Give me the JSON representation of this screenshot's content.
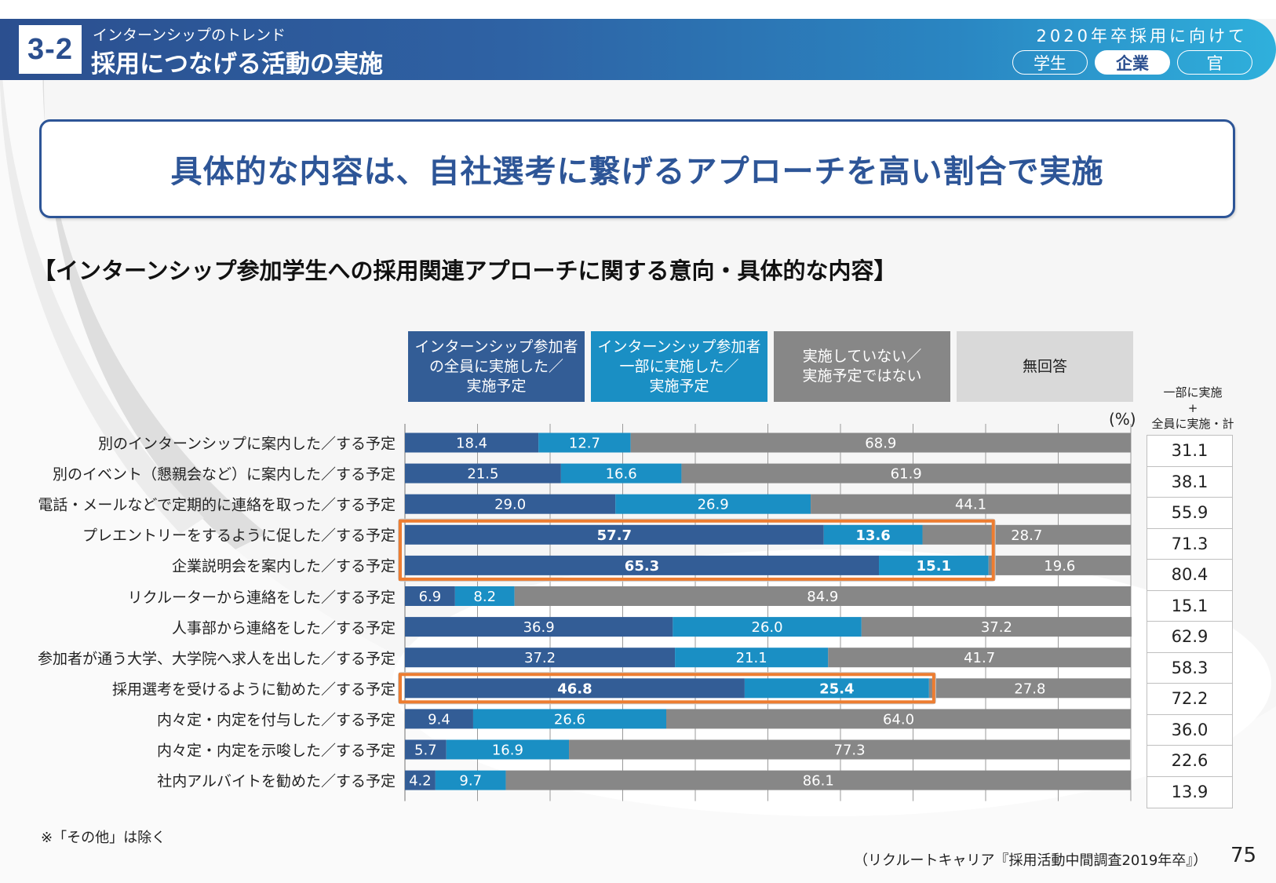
{
  "header": {
    "section_number": "3-2",
    "section_subtitle": "インターンシップのトレンド",
    "section_title": "採用につなげる活動の実施",
    "right_caption": "2020年卒採用に向けて",
    "audience_tabs": [
      {
        "label": "学生",
        "active": false
      },
      {
        "label": "企業",
        "active": true
      },
      {
        "label": "官",
        "active": false
      }
    ]
  },
  "headline": "具体的な内容は、自社選考に繋げるアプローチを高い割合で実施",
  "chart_data": {
    "type": "bar",
    "orientation": "horizontal",
    "stacked": true,
    "title": "【インターンシップ参加学生への採用関連アプローチに関する意向・具体的な内容】",
    "unit_label": "(%)",
    "xlim": [
      0,
      100
    ],
    "grid": true,
    "legend_position": "top",
    "categories": [
      "別のインターンシップに案内した／する予定",
      "別のイベント（懇親会など）に案内した／する予定",
      "電話・メールなどで定期的に連絡を取った／する予定",
      "プレエントリーをするように促した／する予定",
      "企業説明会を案内した／する予定",
      "リクルーターから連絡をした／する予定",
      "人事部から連絡をした／する予定",
      "参加者が通う大学、大学院へ求人を出した／する予定",
      "採用選考を受けるように勧めた／する予定",
      "内々定・内定を付与した／する予定",
      "内々定・内定を示唆した／する予定",
      "社内アルバイトを勧めた／する予定"
    ],
    "series": [
      {
        "name": "インターンシップ参加者\nの全員に実施した／\n実施予定",
        "color": "#335d96",
        "values": [
          18.4,
          21.5,
          29.0,
          57.7,
          65.3,
          6.9,
          36.9,
          37.2,
          46.8,
          9.4,
          5.7,
          4.2
        ]
      },
      {
        "name": "インターンシップ参加者\n一部に実施した／\n実施予定",
        "color": "#1a8fc4",
        "values": [
          12.7,
          16.6,
          26.9,
          13.6,
          15.1,
          8.2,
          26.0,
          21.1,
          25.4,
          26.6,
          16.9,
          9.7
        ]
      },
      {
        "name": "実施していない／\n実施予定ではない",
        "color": "#878787",
        "values": [
          68.9,
          61.9,
          44.1,
          28.7,
          19.6,
          84.9,
          37.2,
          41.7,
          27.8,
          64.0,
          77.3,
          86.1
        ]
      },
      {
        "name": "無回答",
        "color": "#d9d9d9",
        "values": [
          0,
          0,
          0,
          0,
          0,
          0,
          0,
          0,
          0,
          0,
          0,
          0
        ]
      }
    ],
    "highlighted_rows": [
      3,
      4,
      8
    ],
    "highlight_color": "#ed7d31",
    "totals_header": "一部に実施\n+\n全員に実施・計",
    "totals": [
      "31.1",
      "38.1",
      "55.9",
      "71.3",
      "80.4",
      "15.1",
      "62.9",
      "58.3",
      "72.2",
      "36.0",
      "22.6",
      "13.9"
    ]
  },
  "footnote": "※「その他」は除く",
  "source": "（リクルートキャリア『採用活動中間調査2019年卒』）",
  "page_number": "75"
}
